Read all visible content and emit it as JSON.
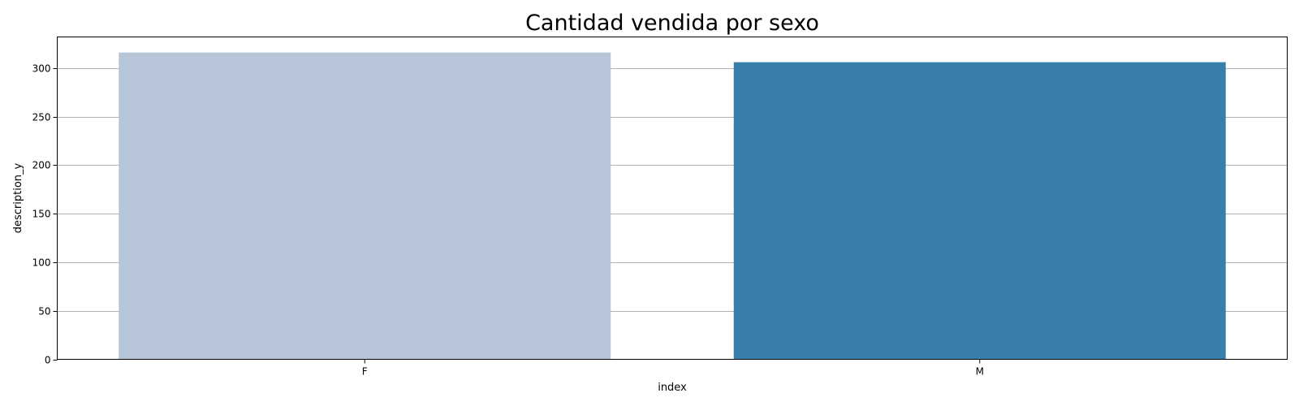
{
  "chart_data": {
    "type": "bar",
    "title": "Cantidad vendida por sexo",
    "xlabel": "index",
    "ylabel": "description_y",
    "categories": [
      "F",
      "M"
    ],
    "values": [
      316,
      306
    ],
    "colors": [
      "#b7c5d9",
      "#3880aa"
    ],
    "ylim": [
      0,
      332
    ],
    "yticks": [
      0,
      50,
      100,
      150,
      200,
      250,
      300
    ],
    "grid": "y",
    "legend": "none"
  }
}
